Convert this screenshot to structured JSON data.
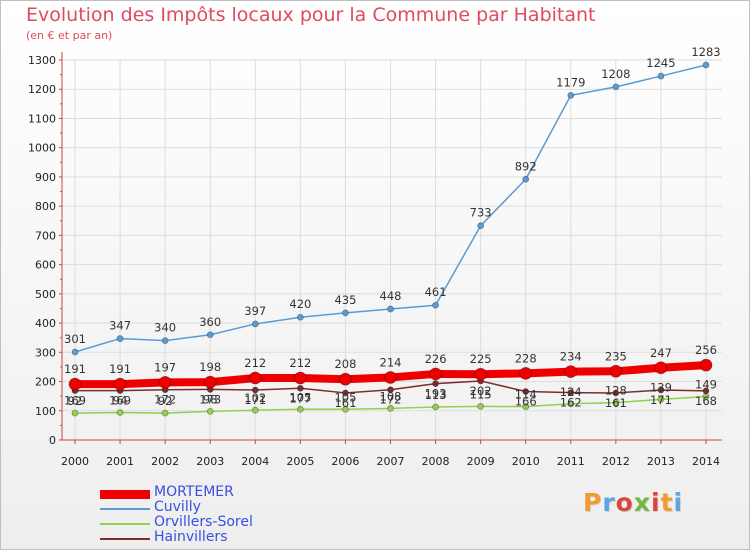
{
  "title": "Evolution des Impôts locaux pour la Commune par Habitant",
  "subtitle": "(en € et par an)",
  "logo": {
    "text": "Proxiti",
    "colors": [
      "#f29a2e",
      "#5aa7e0",
      "#d9473a",
      "#6fba3e",
      "#d9473a",
      "#f29a2e",
      "#5aa7e0"
    ]
  },
  "chart_data": {
    "type": "line",
    "x": [
      2000,
      2001,
      2002,
      2003,
      2004,
      2005,
      2006,
      2007,
      2008,
      2009,
      2010,
      2011,
      2012,
      2013,
      2014
    ],
    "ylim": [
      0,
      1300
    ],
    "yticks": [
      0,
      100,
      200,
      300,
      400,
      500,
      600,
      700,
      800,
      900,
      1000,
      1100,
      1200,
      1300
    ],
    "grid": true,
    "legend_position": "bottom-left",
    "series": [
      {
        "name": "MORTEMER",
        "color": "#ee0000",
        "values": [
          191,
          191,
          197,
          198,
          212,
          212,
          208,
          214,
          226,
          225,
          228,
          234,
          235,
          247,
          256
        ]
      },
      {
        "name": "Cuvilly",
        "color": "#5b9bd5",
        "values": [
          301,
          347,
          340,
          360,
          397,
          420,
          435,
          448,
          461,
          733,
          892,
          1179,
          1208,
          1245,
          1283
        ]
      },
      {
        "name": "Orvillers-Sorel",
        "color": "#92d050",
        "values": [
          92,
          94,
          92,
          98,
          102,
          105,
          105,
          108,
          113,
          115,
          114,
          124,
          128,
          139,
          149
        ]
      },
      {
        "name": "Hainvillers",
        "color": "#7b2c2c",
        "values": [
          169,
          169,
          172,
          173,
          171,
          177,
          161,
          172,
          193,
          202,
          166,
          162,
          161,
          171,
          168
        ]
      }
    ]
  }
}
